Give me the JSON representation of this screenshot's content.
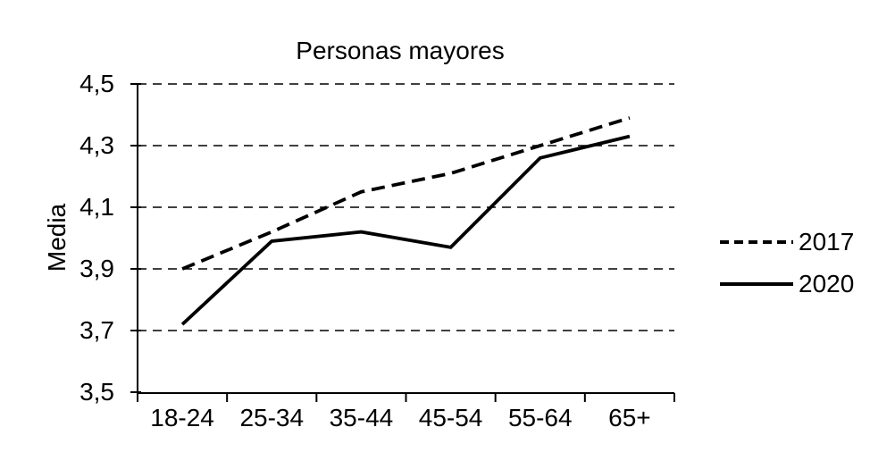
{
  "chart_data": {
    "type": "line",
    "title": "Personas mayores",
    "ylabel": "Media",
    "xlabel": "",
    "categories": [
      "18-24",
      "25-34",
      "35-44",
      "45-54",
      "55-64",
      "65+"
    ],
    "series": [
      {
        "name": "2017",
        "style": "dashed",
        "values": [
          3.9,
          4.02,
          4.15,
          4.21,
          4.3,
          4.39
        ]
      },
      {
        "name": "2020",
        "style": "solid",
        "values": [
          3.72,
          3.99,
          4.02,
          3.97,
          4.26,
          4.33
        ]
      }
    ],
    "ylim": [
      3.5,
      4.5
    ],
    "y_ticks": [
      {
        "value": 4.5,
        "label": "4,5"
      },
      {
        "value": 4.3,
        "label": "4,3"
      },
      {
        "value": 4.1,
        "label": "4,1"
      },
      {
        "value": 3.9,
        "label": "3,9"
      },
      {
        "value": 3.7,
        "label": "3,7"
      },
      {
        "value": 3.5,
        "label": "3,5"
      }
    ],
    "grid": "horizontal-dashed",
    "legend_position": "right",
    "line_color": "#000000",
    "background": "#ffffff"
  }
}
